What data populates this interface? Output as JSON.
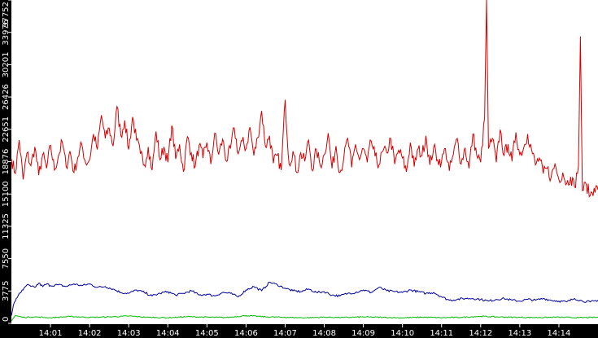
{
  "colors": {
    "background": "#ffffff",
    "axis_band": "#000000",
    "axis_text": "#ffffff",
    "tick_marks": "#ffffff"
  },
  "chart_data": {
    "type": "line",
    "title": "",
    "xlabel": "",
    "ylabel": "",
    "grid": false,
    "legend": "none",
    "ylim": [
      0,
      37752
    ],
    "y_ticks": [
      0,
      3775,
      7550,
      11325,
      15100,
      18876,
      22651,
      26426,
      30201,
      33976,
      37752
    ],
    "x_ticks": [
      "14:01",
      "14:02",
      "14:03",
      "14:04",
      "14:05",
      "14:06",
      "14:07",
      "14:08",
      "14:09",
      "14:10",
      "14:11",
      "14:12",
      "14:13",
      "14:14"
    ],
    "x_domain_minutes": [
      0.0,
      15.0
    ],
    "x_tick_minutes": [
      1,
      2,
      3,
      4,
      5,
      6,
      7,
      8,
      9,
      10,
      11,
      12,
      13,
      14
    ],
    "series": [
      {
        "color": "#d40000",
        "x": [
          0.0,
          0.1,
          0.2,
          0.3,
          0.4,
          0.5,
          0.6,
          0.7,
          0.8,
          0.9,
          1.0,
          1.1,
          1.2,
          1.3,
          1.4,
          1.5,
          1.6,
          1.7,
          1.8,
          1.9,
          2.0,
          2.1,
          2.2,
          2.3,
          2.4,
          2.5,
          2.6,
          2.7,
          2.8,
          2.9,
          3.0,
          3.1,
          3.2,
          3.3,
          3.4,
          3.5,
          3.6,
          3.7,
          3.8,
          3.9,
          4.0,
          4.1,
          4.2,
          4.3,
          4.4,
          4.5,
          4.6,
          4.7,
          4.8,
          4.9,
          5.0,
          5.1,
          5.2,
          5.3,
          5.4,
          5.5,
          5.6,
          5.7,
          5.8,
          5.9,
          6.0,
          6.1,
          6.2,
          6.3,
          6.4,
          6.5,
          6.6,
          6.7,
          6.8,
          6.9,
          7.0,
          7.1,
          7.2,
          7.3,
          7.4,
          7.5,
          7.6,
          7.7,
          7.8,
          7.9,
          8.0,
          8.1,
          8.2,
          8.3,
          8.4,
          8.5,
          8.6,
          8.7,
          8.8,
          8.9,
          9.0,
          9.1,
          9.2,
          9.3,
          9.4,
          9.5,
          9.6,
          9.7,
          9.8,
          9.9,
          10.0,
          10.1,
          10.2,
          10.3,
          10.4,
          10.5,
          10.6,
          10.7,
          10.8,
          10.9,
          11.0,
          11.1,
          11.2,
          11.3,
          11.4,
          11.5,
          11.6,
          11.7,
          11.8,
          11.9,
          12.0,
          12.1,
          12.15,
          12.2,
          12.3,
          12.4,
          12.5,
          12.6,
          12.7,
          12.8,
          12.9,
          13.0,
          13.1,
          13.2,
          13.3,
          13.4,
          13.5,
          13.6,
          13.7,
          13.8,
          13.9,
          14.0,
          14.1,
          14.2,
          14.3,
          14.4,
          14.5,
          14.55,
          14.6,
          14.7,
          14.8,
          14.9,
          15.0
        ],
        "values": [
          19200,
          17500,
          21400,
          16800,
          19900,
          18400,
          20600,
          17300,
          19700,
          18100,
          20800,
          17900,
          19500,
          21200,
          18300,
          20100,
          17600,
          19400,
          20900,
          18700,
          19100,
          22100,
          20300,
          24300,
          21600,
          22800,
          20700,
          25300,
          21900,
          23700,
          20300,
          24100,
          21400,
          19800,
          18500,
          20600,
          17900,
          22400,
          19100,
          20600,
          18800,
          23100,
          19200,
          20900,
          17700,
          21800,
          19900,
          18300,
          20800,
          19300,
          21100,
          18600,
          22200,
          19700,
          21500,
          18900,
          20400,
          22800,
          19800,
          21300,
          20400,
          22900,
          19600,
          21700,
          24800,
          20600,
          21900,
          18700,
          19600,
          17900,
          26100,
          18600,
          20100,
          17600,
          19900,
          18900,
          21400,
          17800,
          20300,
          18400,
          19700,
          22200,
          18100,
          20700,
          17600,
          19300,
          21600,
          18200,
          20900,
          19100,
          20400,
          18800,
          21300,
          19500,
          18500,
          20100,
          19900,
          21600,
          18600,
          20200,
          19300,
          17700,
          21100,
          18300,
          20400,
          19600,
          21900,
          18500,
          20600,
          19100,
          18900,
          20400,
          17800,
          19700,
          21600,
          18600,
          20500,
          18100,
          22100,
          19600,
          18800,
          23900,
          37752,
          20400,
          21600,
          18800,
          22600,
          19600,
          20900,
          18900,
          22300,
          19700,
          20500,
          22100,
          20300,
          18500,
          19300,
          17500,
          18100,
          17000,
          18600,
          16800,
          17600,
          16300,
          17100,
          15900,
          18400,
          33500,
          15500,
          16200,
          14900,
          15800,
          15600
        ]
      },
      {
        "color": "#000099",
        "x": [
          0.0,
          0.05,
          0.1,
          0.2,
          0.3,
          0.4,
          0.5,
          0.6,
          0.7,
          0.8,
          0.9,
          1.0,
          1.2,
          1.4,
          1.6,
          1.8,
          2.0,
          2.2,
          2.4,
          2.6,
          2.8,
          3.0,
          3.2,
          3.4,
          3.6,
          3.8,
          4.0,
          4.2,
          4.4,
          4.6,
          4.8,
          5.0,
          5.2,
          5.4,
          5.6,
          5.8,
          6.0,
          6.2,
          6.4,
          6.6,
          6.8,
          7.0,
          7.2,
          7.4,
          7.6,
          7.8,
          8.0,
          8.2,
          8.4,
          8.6,
          8.8,
          9.0,
          9.2,
          9.4,
          9.6,
          9.8,
          10.0,
          10.2,
          10.4,
          10.6,
          10.8,
          11.0,
          11.2,
          11.4,
          11.6,
          11.8,
          12.0,
          12.2,
          12.4,
          12.6,
          12.8,
          13.0,
          13.2,
          13.4,
          13.6,
          13.8,
          14.0,
          14.2,
          14.4,
          14.6,
          14.8,
          15.0
        ],
        "values": [
          900,
          2100,
          2600,
          3500,
          3900,
          4500,
          4300,
          4200,
          4700,
          4300,
          4600,
          4400,
          4500,
          4300,
          4600,
          4400,
          4600,
          4200,
          4300,
          4000,
          3600,
          3500,
          3900,
          3600,
          3200,
          3500,
          3700,
          3300,
          3500,
          3800,
          3300,
          3400,
          3200,
          3600,
          3500,
          3100,
          3900,
          4300,
          3800,
          4800,
          4500,
          4100,
          3800,
          3700,
          4000,
          3600,
          3700,
          3300,
          3200,
          3500,
          3600,
          3900,
          3600,
          4200,
          3800,
          3700,
          3600,
          3900,
          3700,
          3500,
          3600,
          3100,
          2700,
          2800,
          2900,
          2900,
          2800,
          2600,
          2800,
          2900,
          2700,
          2600,
          2800,
          2700,
          2900,
          2700,
          2600,
          2500,
          2900,
          2600,
          2500,
          2700
        ]
      },
      {
        "color": "#00bb00",
        "x": [
          0.0,
          0.1,
          0.3,
          0.6,
          1.0,
          1.5,
          2.0,
          2.5,
          3.0,
          3.5,
          4.0,
          4.5,
          5.0,
          5.5,
          6.0,
          6.5,
          7.0,
          7.5,
          8.0,
          8.5,
          9.0,
          9.5,
          10.0,
          10.5,
          11.0,
          11.5,
          12.0,
          12.5,
          13.0,
          13.5,
          14.0,
          14.5,
          15.0
        ],
        "values": [
          300,
          900,
          700,
          750,
          650,
          800,
          700,
          750,
          850,
          700,
          650,
          780,
          720,
          680,
          900,
          760,
          700,
          650,
          720,
          680,
          750,
          700,
          640,
          720,
          660,
          700,
          820,
          740,
          700,
          680,
          720,
          660,
          700
        ]
      }
    ]
  }
}
